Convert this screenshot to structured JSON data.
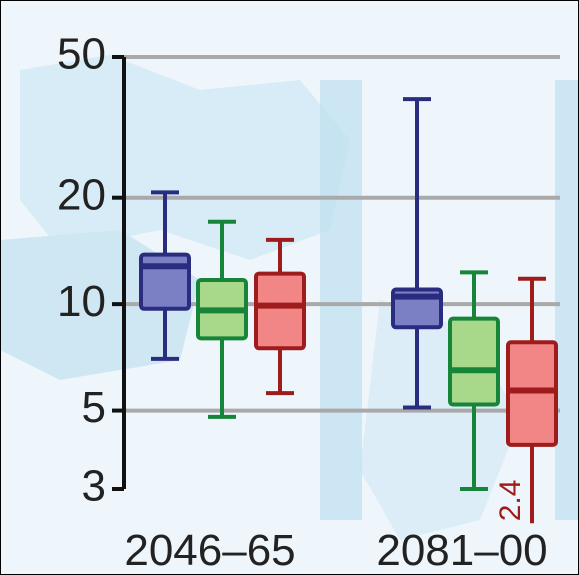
{
  "chart_data": {
    "type": "box",
    "categories": [
      "2046–65",
      "2081–00"
    ],
    "ylim": [
      3,
      50
    ],
    "yticks": [
      3,
      5,
      10,
      20,
      50
    ],
    "log_y": true,
    "grid": true,
    "series": [
      {
        "color": "#2a2d7f",
        "fill": "#7b7fc4",
        "values": [
          {
            "low": 7.0,
            "q1": 9.7,
            "median": 12.8,
            "q3": 13.8,
            "high": 20.7
          },
          {
            "low": 5.1,
            "q1": 8.6,
            "median": 10.5,
            "q3": 11.0,
            "high": 38
          }
        ]
      },
      {
        "color": "#16853a",
        "fill": "#a8d88a",
        "values": [
          {
            "low": 4.8,
            "q1": 8.0,
            "median": 9.6,
            "q3": 11.7,
            "high": 17.1
          },
          {
            "low": 3.0,
            "q1": 5.2,
            "median": 6.5,
            "q3": 9.1,
            "high": 12.3
          }
        ]
      },
      {
        "color": "#9e1c1c",
        "fill": "#f28585",
        "values": [
          {
            "low": 5.6,
            "q1": 7.5,
            "median": 9.9,
            "q3": 12.2,
            "high": 15.2
          },
          {
            "low": 2.4,
            "q1": 4.0,
            "median": 5.7,
            "q3": 7.8,
            "high": 11.8
          }
        ]
      }
    ]
  }
}
